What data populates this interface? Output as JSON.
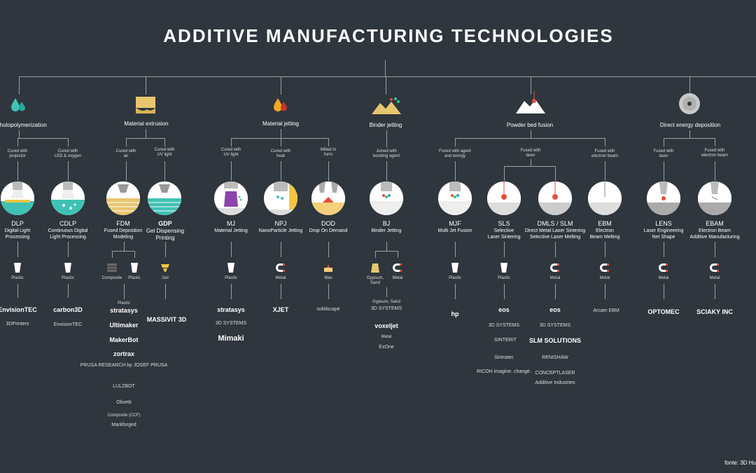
{
  "title": "ADDITIVE MANUFACTURING TECHNOLOGIES",
  "footer": "fonte: 3D Hu",
  "colors": {
    "background": "#2f363d",
    "line": "#9aa0a6"
  },
  "categories": [
    {
      "id": "vp",
      "label": "photopolymerization",
      "icon": "drops-icon"
    },
    {
      "id": "me",
      "label": "Material extrusion",
      "icon": "extrusion-icon"
    },
    {
      "id": "mj",
      "label": "Material jetting",
      "icon": "drops-icon"
    },
    {
      "id": "bj",
      "label": "Binder jetting",
      "icon": "sand-pile-icon"
    },
    {
      "id": "pbf",
      "label": "Powder bed fusion",
      "icon": "laser-powder-icon"
    },
    {
      "id": "ded",
      "label": "Direct energy deposition",
      "icon": "disc-icon"
    }
  ],
  "methods": [
    {
      "id": "cured-projector",
      "text": "Cured with\nprojector"
    },
    {
      "id": "cured-led",
      "text": "Cured with\nLED & oxygen"
    },
    {
      "id": "cured-air",
      "text": "Cured with\nair"
    },
    {
      "id": "cured-uv-me",
      "text": "Cured with\nUV light"
    },
    {
      "id": "cured-uv-mj",
      "text": "Cured with\nUV light"
    },
    {
      "id": "cured-heat",
      "text": "Cured with\nheat"
    },
    {
      "id": "milled",
      "text": "Milled to\nform"
    },
    {
      "id": "joined",
      "text": "Joined with\nbonding agent"
    },
    {
      "id": "fused-agent",
      "text": "Fused with agent\nand energy"
    },
    {
      "id": "fused-laser",
      "text": "Fused with\nlaser"
    },
    {
      "id": "fused-eb",
      "text": "Fused with\nelectron beam"
    },
    {
      "id": "fused-laser-ded",
      "text": "Fused with\nlaser"
    },
    {
      "id": "fused-eb-ded",
      "text": "Fused with\nelectron beam"
    }
  ],
  "technologies": [
    {
      "code": "DLP",
      "name": "Digital Light\nProcessing",
      "materials": [
        "Plastic"
      ]
    },
    {
      "code": "CDLP",
      "name": "Continuous Digital\nLight Processing",
      "materials": [
        "Plastic"
      ]
    },
    {
      "code": "FDM",
      "name": "Fused Deposition\nModeling",
      "materials": [
        "Composite",
        "Plastic"
      ]
    },
    {
      "code": "GDP",
      "name": "Gel Dispensing\nPrinting",
      "materials": [
        "Gel"
      ]
    },
    {
      "code": "MJ",
      "name": "Material Jetting",
      "materials": [
        "Plastic"
      ]
    },
    {
      "code": "NPJ",
      "name": "NanoParticle Jetting",
      "materials": [
        "Metal"
      ]
    },
    {
      "code": "DOD",
      "name": "Drop On Demand",
      "materials": [
        "Wax"
      ]
    },
    {
      "code": "BJ",
      "name": "Binder Jetting",
      "materials": [
        "Gypsum,\nSand",
        "Metal"
      ]
    },
    {
      "code": "MJF",
      "name": "Multi Jet Fusion",
      "materials": [
        "Plastic"
      ]
    },
    {
      "code": "SLS",
      "name": "Selective\nLaser Sintering",
      "materials": [
        "Plastic"
      ]
    },
    {
      "code": "DMLS / SLM",
      "name": "Direct Metal Laser Sintering\nSelective Laser Melting",
      "materials": [
        "Metal"
      ]
    },
    {
      "code": "EBM",
      "name": "Electron\nBeam Melting",
      "materials": [
        "Metal"
      ]
    },
    {
      "code": "LENS",
      "name": "Laser Engineering\nNet Shape",
      "materials": [
        "Metal"
      ]
    },
    {
      "code": "EBAM",
      "name": "Electron Beam\nAdditive Manufacturing",
      "materials": [
        "Metal"
      ]
    }
  ],
  "brands": {
    "dlp": [
      "EnvisionTEC",
      "3DPrinters"
    ],
    "cdlp": [
      "carbon3D",
      "EnvisionTEC"
    ],
    "fdm_heading": "Plastic",
    "fdm": [
      "stratasys",
      "Ultimaker",
      "MakerBot",
      "zortrax",
      "PRUSA RESEARCH by JOSEF PRUSA",
      "LULZBOT",
      "Olivetti"
    ],
    "fdm_composite_heading": "Composite (CCF)",
    "fdm_composite": [
      "Markforged"
    ],
    "gdp": [
      "MASSIVIT 3D"
    ],
    "mj": [
      "stratasys",
      "3D SYSTEMS",
      "Mimaki"
    ],
    "npj": [
      "XJET"
    ],
    "dod": [
      "solidscape"
    ],
    "bj_heading_1": "Gypsum, Sand",
    "bj_1": [
      "3D SYSTEMS",
      "voxeljet"
    ],
    "bj_heading_2": "Metal",
    "bj_2": [
      "ExOne"
    ],
    "mjf": [
      "hp"
    ],
    "sls": [
      "eos",
      "3D SYSTEMS",
      "SINTERIT",
      "Sintratec",
      "RICOH imagine. change."
    ],
    "dmls": [
      "eos",
      "3D SYSTEMS",
      "SLM SOLUTIONS",
      "RENISHAW",
      "CONCEPTLASER",
      "Additive Industries"
    ],
    "ebm": [
      "Arcam EBM"
    ],
    "lens": [
      "OPTOMEC"
    ],
    "ebam": [
      "SCIAKY INC"
    ]
  }
}
